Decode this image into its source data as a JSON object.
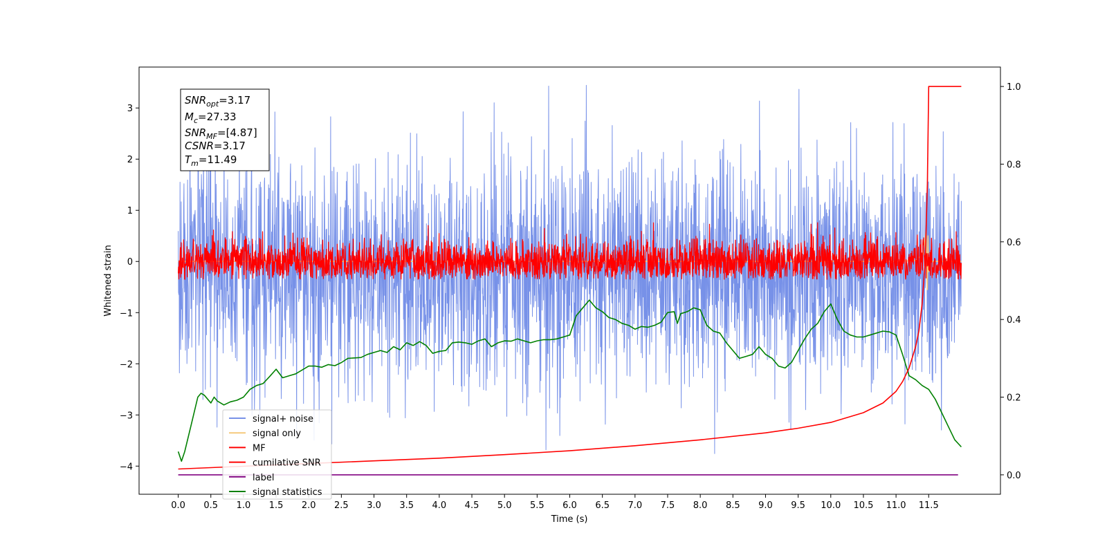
{
  "chart_data": {
    "type": "line",
    "title": "",
    "xlabel": "Time (s)",
    "ylabel": "Whitened strain",
    "xlim": [
      -0.6,
      12.6
    ],
    "ylim": [
      -4.55,
      3.8
    ],
    "y2lim": [
      -0.05,
      1.05
    ],
    "x_ticks": [
      0,
      0.5,
      1,
      1.5,
      2,
      2.5,
      3,
      3.5,
      4,
      4.5,
      5,
      5.5,
      6,
      6.5,
      7,
      7.5,
      8,
      8.5,
      9,
      9.5,
      10,
      10.5,
      11,
      11.5
    ],
    "x_tick_labels": [
      "0.0",
      "0.5",
      "1.0",
      "1.5",
      "2.0",
      "2.5",
      "3.0",
      "3.5",
      "4.0",
      "4.5",
      "5.0",
      "5.5",
      "6.0",
      "6.5",
      "7.0",
      "7.5",
      "8.0",
      "8.5",
      "9.0",
      "9.5",
      "10.0",
      "10.5",
      "11.0",
      "11.5"
    ],
    "y_ticks": [
      -4,
      -3,
      -2,
      -1,
      0,
      1,
      2,
      3
    ],
    "y_tick_labels": [
      "−4",
      "−3",
      "−2",
      "−1",
      "0",
      "1",
      "2",
      "3"
    ],
    "y2_ticks": [
      0,
      0.2,
      0.4,
      0.6,
      0.8,
      1.0
    ],
    "y2_tick_labels": [
      "0.0",
      "0.2",
      "0.4",
      "0.6",
      "0.8",
      "1.0"
    ],
    "grid": false,
    "legend_position": "lower-left",
    "x_range": [
      0,
      12
    ],
    "series": [
      {
        "name": "signal+ noise",
        "axis": "left",
        "color": "#7791e8",
        "kind": "noise",
        "center": -0.2,
        "amplitude": 1.1,
        "min": -4.1,
        "max": 3.6
      },
      {
        "name": "signal only",
        "axis": "left",
        "color": "#f5c97b",
        "x": [
          0,
          11.0,
          11.3,
          11.42,
          11.46,
          11.48,
          11.49,
          11.5,
          11.52,
          12
        ],
        "y": [
          0,
          0,
          0.02,
          0.15,
          0.6,
          -0.55,
          0.5,
          -0.2,
          0,
          0
        ]
      },
      {
        "name": "MF",
        "axis": "left",
        "color": "#ff0000",
        "kind": "noise",
        "center": 0,
        "amplitude": 0.22,
        "min": -0.35,
        "max": 1.0
      },
      {
        "name": "cumilative SNR",
        "axis": "right",
        "color": "#ff0000",
        "x": [
          0,
          1,
          2,
          3,
          4,
          5,
          6,
          7,
          8,
          9,
          9.5,
          10,
          10.5,
          10.8,
          11.0,
          11.1,
          11.2,
          11.3,
          11.35,
          11.4,
          11.45,
          11.48,
          11.5,
          12
        ],
        "y": [
          0.015,
          0.022,
          0.029,
          0.036,
          0.043,
          0.052,
          0.062,
          0.075,
          0.09,
          0.108,
          0.12,
          0.135,
          0.16,
          0.185,
          0.215,
          0.24,
          0.275,
          0.33,
          0.37,
          0.44,
          0.56,
          0.75,
          1.0,
          1.0
        ]
      },
      {
        "name": "label",
        "axis": "right",
        "color": "#800080",
        "x": [
          0,
          11.95
        ],
        "y": [
          0,
          0
        ]
      },
      {
        "name": "signal statistics",
        "axis": "right",
        "color": "#008000",
        "x": [
          0,
          0.05,
          0.1,
          0.2,
          0.3,
          0.35,
          0.4,
          0.5,
          0.55,
          0.6,
          0.7,
          0.8,
          0.9,
          1.0,
          1.1,
          1.2,
          1.3,
          1.4,
          1.5,
          1.6,
          1.7,
          1.8,
          1.9,
          2.0,
          2.1,
          2.2,
          2.3,
          2.4,
          2.5,
          2.6,
          2.7,
          2.8,
          2.9,
          3.0,
          3.1,
          3.2,
          3.3,
          3.4,
          3.5,
          3.6,
          3.7,
          3.8,
          3.9,
          4.0,
          4.1,
          4.2,
          4.3,
          4.4,
          4.5,
          4.6,
          4.7,
          4.8,
          4.9,
          5.0,
          5.1,
          5.2,
          5.3,
          5.4,
          5.5,
          5.6,
          5.7,
          5.8,
          5.9,
          6.0,
          6.1,
          6.2,
          6.3,
          6.4,
          6.5,
          6.6,
          6.7,
          6.8,
          6.9,
          7.0,
          7.1,
          7.2,
          7.3,
          7.4,
          7.5,
          7.6,
          7.65,
          7.7,
          7.8,
          7.9,
          8.0,
          8.1,
          8.2,
          8.3,
          8.4,
          8.5,
          8.6,
          8.7,
          8.8,
          8.9,
          9.0,
          9.1,
          9.2,
          9.3,
          9.4,
          9.5,
          9.6,
          9.7,
          9.8,
          9.9,
          10.0,
          10.1,
          10.2,
          10.3,
          10.4,
          10.5,
          10.6,
          10.7,
          10.8,
          10.9,
          11.0,
          11.1,
          11.2,
          11.3,
          11.4,
          11.5,
          11.6,
          11.7,
          11.8,
          11.9,
          12.0
        ],
        "y": [
          0.06,
          0.035,
          0.06,
          0.13,
          0.2,
          0.21,
          0.205,
          0.185,
          0.2,
          0.19,
          0.18,
          0.188,
          0.192,
          0.2,
          0.22,
          0.23,
          0.235,
          0.253,
          0.272,
          0.25,
          0.255,
          0.26,
          0.27,
          0.28,
          0.28,
          0.277,
          0.284,
          0.281,
          0.289,
          0.3,
          0.301,
          0.302,
          0.31,
          0.315,
          0.32,
          0.315,
          0.33,
          0.322,
          0.34,
          0.333,
          0.343,
          0.333,
          0.313,
          0.318,
          0.32,
          0.34,
          0.342,
          0.34,
          0.336,
          0.345,
          0.35,
          0.33,
          0.34,
          0.345,
          0.344,
          0.35,
          0.345,
          0.34,
          0.345,
          0.348,
          0.348,
          0.35,
          0.355,
          0.36,
          0.41,
          0.43,
          0.45,
          0.43,
          0.42,
          0.405,
          0.4,
          0.39,
          0.385,
          0.375,
          0.382,
          0.38,
          0.385,
          0.393,
          0.418,
          0.42,
          0.39,
          0.415,
          0.42,
          0.43,
          0.425,
          0.385,
          0.37,
          0.365,
          0.34,
          0.32,
          0.3,
          0.305,
          0.31,
          0.33,
          0.31,
          0.3,
          0.28,
          0.275,
          0.29,
          0.32,
          0.35,
          0.375,
          0.39,
          0.42,
          0.44,
          0.4,
          0.37,
          0.36,
          0.355,
          0.355,
          0.36,
          0.365,
          0.37,
          0.368,
          0.36,
          0.31,
          0.255,
          0.245,
          0.23,
          0.22,
          0.195,
          0.16,
          0.125,
          0.09,
          0.072
        ]
      }
    ]
  },
  "info_box": {
    "line1": {
      "pre": "SNR",
      "sub": "opt",
      "val": "=3.17"
    },
    "line2": {
      "pre": "M",
      "sub": "c",
      "val": "=27.33"
    },
    "line3": {
      "pre": "SNR",
      "sub": "MF",
      "val": "=[4.87]"
    },
    "line4": {
      "pre": "CSNR",
      "sub": "",
      "val": "=3.17"
    },
    "line5": {
      "pre": "T",
      "sub": "m",
      "val": "=11.49"
    }
  },
  "legend": {
    "items": [
      {
        "label": "signal+ noise",
        "color": "#7791e8"
      },
      {
        "label": "signal only",
        "color": "#f5c97b"
      },
      {
        "label": "MF",
        "color": "#ff0000"
      },
      {
        "label": "cumilative SNR",
        "color": "#ff0000"
      },
      {
        "label": "label",
        "color": "#800080"
      },
      {
        "label": "signal statistics",
        "color": "#008000"
      }
    ]
  }
}
